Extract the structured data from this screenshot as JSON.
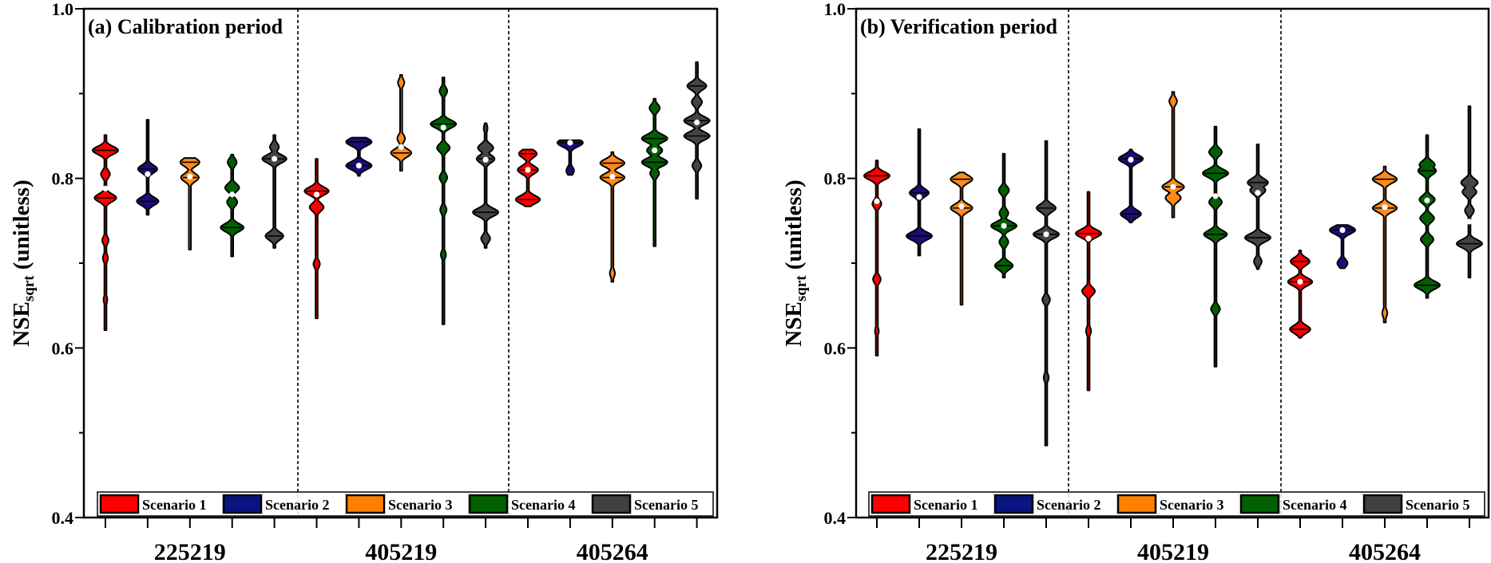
{
  "chart_data": [
    {
      "type": "violin",
      "title": "(a) Calibration period",
      "ylabel_main": "NSE",
      "ylabel_sub": "sqrt",
      "ylabel_rest": " (unitless)",
      "ylim": [
        0.4,
        1.0
      ],
      "yticks": [
        "1.0",
        "0.8",
        "0.6",
        "0.4"
      ],
      "ytick_values": [
        1.0,
        0.8,
        0.6,
        0.4
      ],
      "minor_ticks": [
        0.9,
        0.7,
        0.5
      ],
      "categories": [
        "225219",
        "405219",
        "405264"
      ],
      "legend_position": "bottom",
      "violins": [
        [
          {
            "min": 0.621,
            "max": 0.851,
            "median": 0.788,
            "modes": [
              [
                0.833,
                1
              ],
              [
                0.805,
                0.35
              ],
              [
                0.777,
                0.85
              ],
              [
                0.727,
                0.25
              ],
              [
                0.706,
                0.2
              ],
              [
                0.657,
                0.15
              ]
            ]
          },
          {
            "min": 0.757,
            "max": 0.869,
            "median": 0.805,
            "modes": [
              [
                0.811,
                0.75
              ],
              [
                0.773,
                0.85
              ]
            ]
          },
          {
            "min": 0.716,
            "max": 0.824,
            "median": 0.802,
            "modes": [
              [
                0.819,
                0.75
              ],
              [
                0.801,
                0.7
              ]
            ]
          },
          {
            "min": 0.708,
            "max": 0.828,
            "median": 0.781,
            "modes": [
              [
                0.819,
                0.35
              ],
              [
                0.789,
                0.55
              ],
              [
                0.772,
                0.4
              ],
              [
                0.742,
                0.9
              ]
            ]
          },
          {
            "min": 0.718,
            "max": 0.851,
            "median": 0.823,
            "modes": [
              [
                0.837,
                0.35
              ],
              [
                0.823,
                0.95
              ],
              [
                0.732,
                0.7
              ]
            ]
          }
        ],
        [
          {
            "min": 0.635,
            "max": 0.823,
            "median": 0.781,
            "modes": [
              [
                0.785,
                0.95
              ],
              [
                0.766,
                0.55
              ],
              [
                0.699,
                0.25
              ]
            ]
          },
          {
            "min": 0.803,
            "max": 0.848,
            "median": 0.815,
            "modes": [
              [
                0.843,
                1
              ],
              [
                0.815,
                1
              ]
            ]
          },
          {
            "min": 0.809,
            "max": 0.922,
            "median": 0.837,
            "modes": [
              [
                0.913,
                0.25
              ],
              [
                0.847,
                0.3
              ],
              [
                0.83,
                0.8
              ]
            ]
          },
          {
            "min": 0.628,
            "max": 0.919,
            "median": 0.86,
            "modes": [
              [
                0.903,
                0.3
              ],
              [
                0.864,
                1
              ],
              [
                0.836,
                0.5
              ],
              [
                0.801,
                0.3
              ],
              [
                0.763,
                0.25
              ],
              [
                0.71,
                0.2
              ]
            ]
          },
          {
            "min": 0.718,
            "max": 0.865,
            "median": 0.822,
            "modes": [
              [
                0.859,
                0.15
              ],
              [
                0.836,
                0.6
              ],
              [
                0.823,
                0.7
              ],
              [
                0.76,
                1
              ],
              [
                0.729,
                0.35
              ]
            ]
          }
        ],
        [
          {
            "min": 0.767,
            "max": 0.834,
            "median": 0.81,
            "modes": [
              [
                0.829,
                0.7
              ],
              [
                0.81,
                0.8
              ],
              [
                0.775,
                0.95
              ]
            ]
          },
          {
            "min": 0.804,
            "max": 0.845,
            "median": 0.842,
            "modes": [
              [
                0.842,
                1
              ],
              [
                0.809,
                0.3
              ]
            ]
          },
          {
            "min": 0.678,
            "max": 0.831,
            "median": 0.802,
            "modes": [
              [
                0.818,
                0.95
              ],
              [
                0.801,
                0.95
              ],
              [
                0.688,
                0.2
              ]
            ]
          },
          {
            "min": 0.72,
            "max": 0.894,
            "median": 0.833,
            "modes": [
              [
                0.883,
                0.4
              ],
              [
                0.847,
                1
              ],
              [
                0.833,
                0.6
              ],
              [
                0.819,
                1
              ],
              [
                0.806,
                0.35
              ]
            ]
          },
          {
            "min": 0.776,
            "max": 0.937,
            "median": 0.866,
            "modes": [
              [
                0.909,
                0.75
              ],
              [
                0.89,
                0.4
              ],
              [
                0.868,
                1
              ],
              [
                0.85,
                1
              ],
              [
                0.815,
                0.35
              ]
            ]
          }
        ]
      ]
    },
    {
      "type": "violin",
      "title": "(b) Verification period",
      "ylabel_main": "NSE",
      "ylabel_sub": "sqrt",
      "ylabel_rest": " (unitless)",
      "ylim": [
        0.4,
        1.0
      ],
      "yticks": [
        "1.0",
        "0.8",
        "0.6",
        "0.4"
      ],
      "ytick_values": [
        1.0,
        0.8,
        0.6,
        0.4
      ],
      "minor_ticks": [
        0.9,
        0.7,
        0.5
      ],
      "categories": [
        "225219",
        "405219",
        "405264"
      ],
      "legend_position": "bottom",
      "violins": [
        [
          {
            "min": 0.591,
            "max": 0.821,
            "median": 0.773,
            "modes": [
              [
                0.803,
                1
              ],
              [
                0.77,
                0.35
              ],
              [
                0.681,
                0.3
              ],
              [
                0.62,
                0.15
              ]
            ]
          },
          {
            "min": 0.709,
            "max": 0.858,
            "median": 0.778,
            "modes": [
              [
                0.783,
                0.75
              ],
              [
                0.732,
                1
              ]
            ]
          },
          {
            "min": 0.651,
            "max": 0.807,
            "median": 0.767,
            "modes": [
              [
                0.799,
                0.85
              ],
              [
                0.765,
                0.85
              ]
            ]
          },
          {
            "min": 0.683,
            "max": 0.829,
            "median": 0.744,
            "modes": [
              [
                0.786,
                0.4
              ],
              [
                0.759,
                0.35
              ],
              [
                0.744,
                1
              ],
              [
                0.725,
                0.35
              ],
              [
                0.697,
                0.7
              ]
            ]
          },
          {
            "min": 0.485,
            "max": 0.844,
            "median": 0.734,
            "modes": [
              [
                0.765,
                0.75
              ],
              [
                0.734,
                1
              ],
              [
                0.657,
                0.3
              ],
              [
                0.565,
                0.2
              ]
            ]
          }
        ],
        [
          {
            "min": 0.55,
            "max": 0.784,
            "median": 0.729,
            "modes": [
              [
                0.735,
                1
              ],
              [
                0.667,
                0.5
              ],
              [
                0.62,
                0.2
              ]
            ]
          },
          {
            "min": 0.748,
            "max": 0.834,
            "median": 0.822,
            "modes": [
              [
                0.823,
                0.95
              ],
              [
                0.758,
                0.8
              ]
            ]
          },
          {
            "min": 0.754,
            "max": 0.902,
            "median": 0.79,
            "modes": [
              [
                0.891,
                0.3
              ],
              [
                0.79,
                0.85
              ],
              [
                0.777,
                0.6
              ]
            ]
          },
          {
            "min": 0.578,
            "max": 0.861,
            "median": 0.779,
            "modes": [
              [
                0.831,
                0.5
              ],
              [
                0.806,
                1
              ],
              [
                0.772,
                0.5
              ],
              [
                0.734,
                0.9
              ],
              [
                0.646,
                0.35
              ]
            ]
          },
          {
            "min": 0.693,
            "max": 0.84,
            "median": 0.783,
            "modes": [
              [
                0.795,
                0.8
              ],
              [
                0.786,
                0.6
              ],
              [
                0.73,
                1
              ],
              [
                0.702,
                0.3
              ]
            ]
          }
        ],
        [
          {
            "min": 0.612,
            "max": 0.715,
            "median": 0.678,
            "modes": [
              [
                0.702,
                0.75
              ],
              [
                0.678,
                0.95
              ],
              [
                0.622,
                0.8
              ]
            ]
          },
          {
            "min": 0.694,
            "max": 0.745,
            "median": 0.739,
            "modes": [
              [
                0.739,
                1
              ],
              [
                0.7,
                0.4
              ]
            ]
          },
          {
            "min": 0.63,
            "max": 0.814,
            "median": 0.766,
            "modes": [
              [
                0.799,
                0.95
              ],
              [
                0.765,
                0.95
              ],
              [
                0.641,
                0.2
              ]
            ]
          },
          {
            "min": 0.659,
            "max": 0.851,
            "median": 0.774,
            "modes": [
              [
                0.816,
                0.6
              ],
              [
                0.809,
                0.7
              ],
              [
                0.775,
                0.6
              ],
              [
                0.753,
                0.55
              ],
              [
                0.728,
                0.5
              ],
              [
                0.674,
                1
              ]
            ]
          },
          {
            "min": 0.683,
            "max": 0.885,
            "median": 0.749,
            "modes": [
              [
                0.795,
                0.65
              ],
              [
                0.784,
                0.55
              ],
              [
                0.762,
                0.35
              ],
              [
                0.723,
                1
              ]
            ]
          }
        ]
      ]
    }
  ],
  "legend": [
    {
      "label": "Scenario 1",
      "color": "#ff0000"
    },
    {
      "label": "Scenario 2",
      "color": "#0a1480"
    },
    {
      "label": "Scenario 3",
      "color": "#ff8000"
    },
    {
      "label": "Scenario 4",
      "color": "#006000"
    },
    {
      "label": "Scenario 5",
      "color": "#404040"
    }
  ],
  "violin_colors": [
    "#ff0000",
    "#1c0c78",
    "#ff8a1a",
    "#006000",
    "#444444"
  ]
}
